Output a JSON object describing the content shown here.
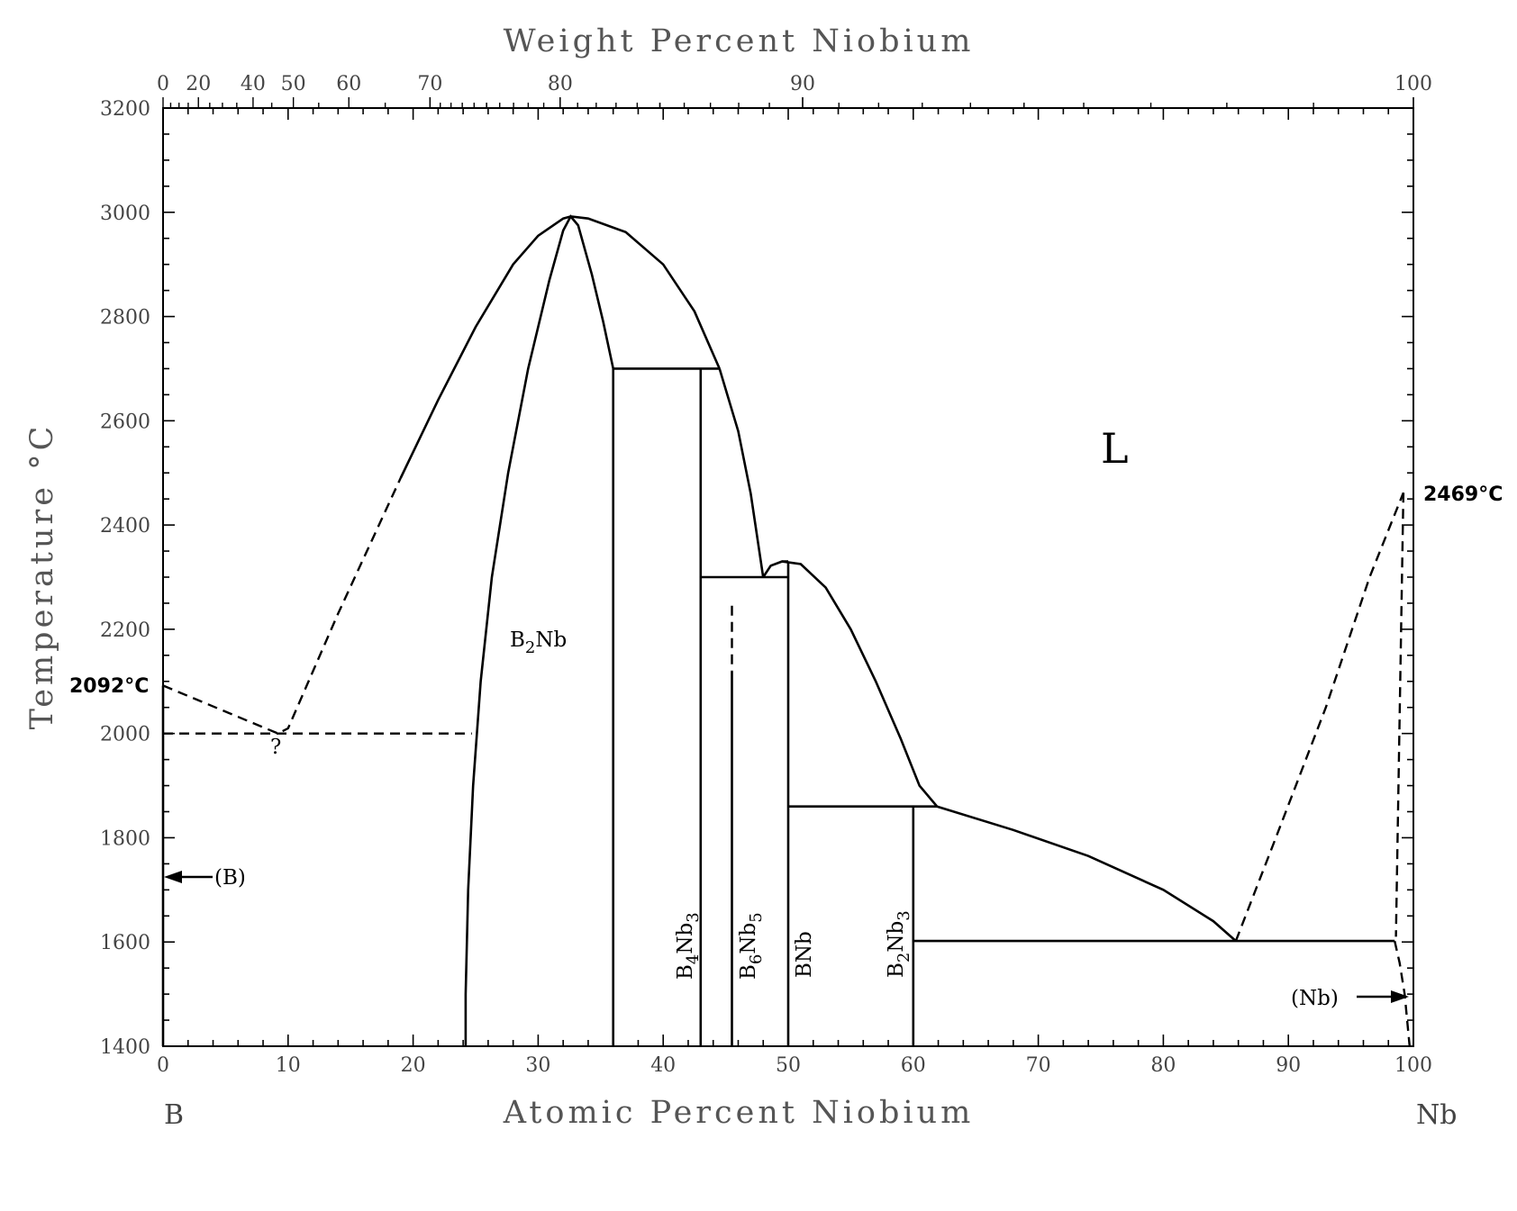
{
  "chart_data": {
    "type": "phase-diagram",
    "title": "",
    "top_axis": {
      "label": "Weight Percent Niobium",
      "major_ticks": [
        0,
        20,
        40,
        50,
        60,
        70,
        80,
        90,
        100
      ],
      "labels": [
        "0",
        "20",
        "40",
        "50",
        "60",
        "70",
        "80",
        "90",
        "100"
      ]
    },
    "x_axis": {
      "label": "Atomic Percent Niobium",
      "range": [
        0,
        100
      ],
      "ticks": [
        0,
        10,
        20,
        30,
        40,
        50,
        60,
        70,
        80,
        90,
        100
      ],
      "labels": [
        "0",
        "10",
        "20",
        "30",
        "40",
        "50",
        "60",
        "70",
        "80",
        "90",
        "100"
      ],
      "left_element": "B",
      "right_element": "Nb"
    },
    "y_axis": {
      "label": "Temperature °C",
      "range": [
        1400,
        3200
      ],
      "ticks": [
        1400,
        1600,
        1800,
        2000,
        2200,
        2400,
        2600,
        2800,
        3000,
        3200
      ],
      "labels": [
        "1400",
        "1600",
        "1800",
        "2000",
        "2200",
        "2400",
        "2600",
        "2800",
        "3000",
        "3200"
      ]
    },
    "labels": {
      "liquid": "L",
      "b2nb": {
        "main": "B",
        "sub": "2",
        "tail": "Nb"
      },
      "b4nb3": {
        "a": "B",
        "a_sub": "4",
        "b": "Nb",
        "b_sub": "3"
      },
      "b6nb5": {
        "a": "B",
        "a_sub": "6",
        "b": "Nb",
        "b_sub": "5"
      },
      "bnb": "BNb",
      "b2nb3": {
        "a": "B",
        "a_sub": "2",
        "b": "Nb",
        "b_sub": "3"
      },
      "boron_phase": "(B)",
      "niobium_phase": "(Nb)",
      "b_melting": "2092°C",
      "nb_melting": "2469°C",
      "uncertain": "?"
    },
    "lines": [
      {
        "style": "dashed",
        "points": [
          [
            0,
            2092
          ],
          [
            9.2,
            2000
          ],
          [
            10,
            2010
          ],
          [
            14,
            2230
          ],
          [
            19,
            2490
          ]
        ]
      },
      {
        "style": "solid",
        "points": [
          [
            19,
            2490
          ],
          [
            22,
            2640
          ],
          [
            25,
            2780
          ],
          [
            28,
            2900
          ],
          [
            30,
            2955
          ],
          [
            32,
            2988
          ],
          [
            32.6,
            2992
          ],
          [
            34,
            2988
          ],
          [
            37,
            2962
          ],
          [
            40,
            2900
          ],
          [
            42.5,
            2810
          ],
          [
            44.5,
            2700
          ]
        ]
      },
      {
        "style": "solid",
        "points": [
          [
            44.5,
            2700
          ],
          [
            46,
            2580
          ],
          [
            47,
            2460
          ],
          [
            48,
            2300
          ]
        ]
      },
      {
        "style": "solid",
        "points": [
          [
            24.2,
            1400
          ],
          [
            24.2,
            1500
          ],
          [
            24.4,
            1700
          ],
          [
            24.8,
            1900
          ],
          [
            25.4,
            2100
          ],
          [
            26.3,
            2300
          ],
          [
            27.6,
            2500
          ],
          [
            29.2,
            2700
          ],
          [
            30.9,
            2870
          ],
          [
            32,
            2965
          ],
          [
            32.6,
            2992
          ],
          [
            33.2,
            2975
          ],
          [
            34.3,
            2880
          ],
          [
            35.2,
            2790
          ],
          [
            36,
            2700
          ],
          [
            36,
            1400
          ]
        ]
      },
      {
        "style": "solid",
        "points": [
          [
            36,
            2700
          ],
          [
            44.5,
            2700
          ]
        ]
      },
      {
        "style": "solid",
        "points": [
          [
            43,
            2700
          ],
          [
            43,
            1400
          ]
        ]
      },
      {
        "style": "solid",
        "points": [
          [
            43,
            2300
          ],
          [
            50,
            2300
          ]
        ]
      },
      {
        "style": "solid",
        "points": [
          [
            48,
            2300
          ],
          [
            48.6,
            2322
          ],
          [
            49.5,
            2330
          ],
          [
            50,
            2330
          ]
        ]
      },
      {
        "style": "solid",
        "points": [
          [
            49.5,
            2330
          ],
          [
            51,
            2325
          ],
          [
            53,
            2280
          ],
          [
            55,
            2200
          ],
          [
            57,
            2100
          ],
          [
            59,
            1990
          ],
          [
            60.5,
            1900
          ],
          [
            61.9,
            1860
          ]
        ]
      },
      {
        "style": "solid",
        "points": [
          [
            50,
            2330
          ],
          [
            50,
            1400
          ]
        ]
      },
      {
        "style": "solid",
        "points": [
          [
            45.5,
            2120
          ],
          [
            45.5,
            1400
          ]
        ]
      },
      {
        "style": "dashed",
        "points": [
          [
            45.5,
            2245
          ],
          [
            45.5,
            2120
          ]
        ]
      },
      {
        "style": "solid",
        "points": [
          [
            50,
            1860
          ],
          [
            61.9,
            1860
          ]
        ]
      },
      {
        "style": "solid",
        "points": [
          [
            60,
            1860
          ],
          [
            60,
            1400
          ]
        ]
      },
      {
        "style": "solid",
        "points": [
          [
            61.9,
            1860
          ],
          [
            68,
            1815
          ],
          [
            74,
            1765
          ],
          [
            80,
            1700
          ],
          [
            84,
            1640
          ],
          [
            85.8,
            1602
          ]
        ]
      },
      {
        "style": "solid",
        "points": [
          [
            60,
            1602
          ],
          [
            98.5,
            1602
          ]
        ]
      },
      {
        "style": "dashed",
        "points": [
          [
            85.8,
            1602
          ],
          [
            89,
            1800
          ],
          [
            93,
            2050
          ],
          [
            96.5,
            2300
          ],
          [
            99.2,
            2462
          ]
        ]
      },
      {
        "style": "dashed",
        "points": [
          [
            99.2,
            2462
          ],
          [
            98.6,
            1610
          ]
        ]
      },
      {
        "style": "dashed",
        "points": [
          [
            98.5,
            1602
          ],
          [
            98.9,
            1560
          ],
          [
            99.3,
            1500
          ],
          [
            99.7,
            1400
          ]
        ]
      },
      {
        "style": "dashed",
        "points": [
          [
            0,
            2000
          ],
          [
            24.7,
            2000
          ]
        ]
      },
      {
        "style": "solid",
        "points": [
          [
            0,
            2092
          ],
          [
            0,
            1400
          ]
        ]
      }
    ]
  }
}
